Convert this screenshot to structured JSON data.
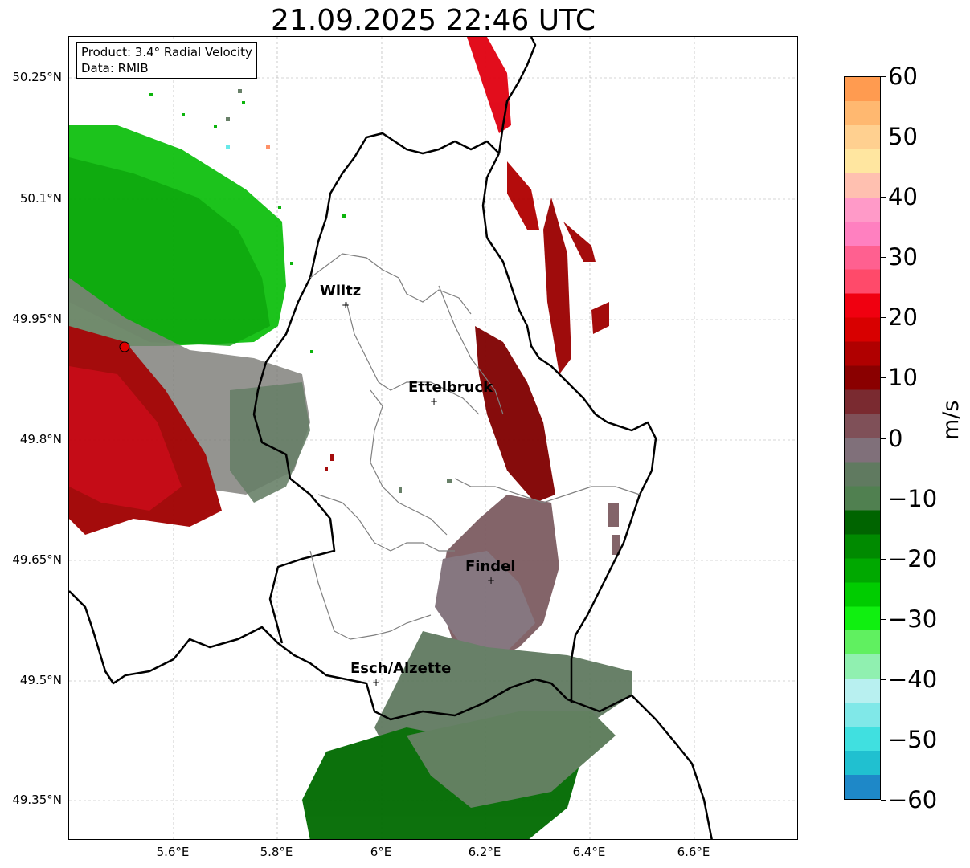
{
  "title": "21.09.2025 22:46 UTC",
  "info": {
    "product": "Product: 3.4° Radial Velocity",
    "data": "Data: RMIB"
  },
  "map": {
    "lat_ticks": [
      "50.25°N",
      "50.1°N",
      "49.95°N",
      "49.8°N",
      "49.65°N",
      "49.5°N",
      "49.35°N"
    ],
    "lon_ticks": [
      "5.6°E",
      "5.8°E",
      "6°E",
      "6.2°E",
      "6.4°E",
      "6.6°E"
    ],
    "cities": [
      {
        "name": "Wiltz"
      },
      {
        "name": "Ettelbruck"
      },
      {
        "name": "Findel"
      },
      {
        "name": "Esch/Alzette"
      }
    ],
    "radar_site_color": "#e00000"
  },
  "colorbar": {
    "unit": "m/s",
    "ticks": [
      "60",
      "50",
      "40",
      "30",
      "20",
      "10",
      "0",
      "−10",
      "−20",
      "−30",
      "−40",
      "−50",
      "−60"
    ],
    "colors": [
      "#ff9b50",
      "#ffb870",
      "#ffd090",
      "#ffe6a0",
      "#ffc0b0",
      "#ff9ac8",
      "#ff80c0",
      "#ff6090",
      "#ff4a6a",
      "#f00010",
      "#d80000",
      "#b00000",
      "#8a0000",
      "#7a2a30",
      "#7f5058",
      "#80707a",
      "#607a60",
      "#508050",
      "#006400",
      "#008a00",
      "#00a800",
      "#00cc00",
      "#10f010",
      "#60f060",
      "#90f0b0",
      "#b8f0f0",
      "#80e8e8",
      "#40e0e0",
      "#20c0d0",
      "#1e88c8"
    ]
  }
}
